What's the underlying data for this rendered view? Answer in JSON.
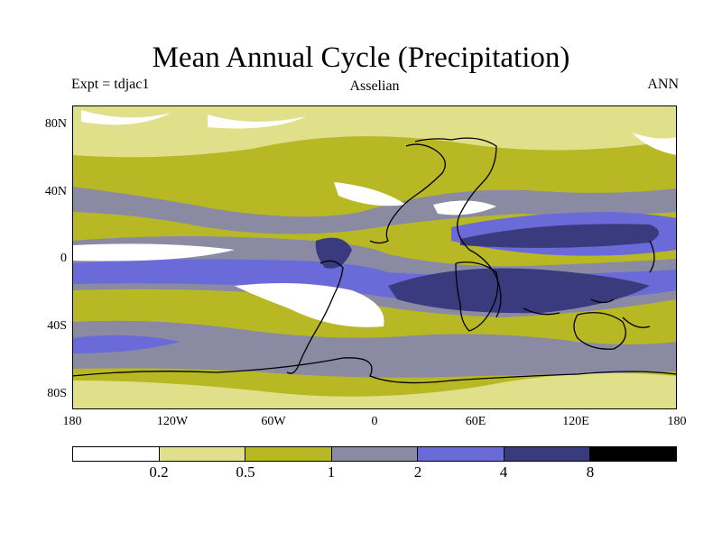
{
  "title": "Mean Annual Cycle (Precipitation)",
  "experiment": "Expt = tdjac1",
  "scheme": "Asselian",
  "period": "ANN",
  "lat_labels": [
    "80N",
    "40N",
    "0",
    "40S",
    "80S"
  ],
  "lon_labels": [
    "180",
    "120W",
    "60W",
    "0",
    "60E",
    "120E",
    "180"
  ],
  "colorbar": {
    "labels": [
      "0.2",
      "0.5",
      "1",
      "2",
      "4",
      "8"
    ],
    "colors": [
      "#ffffff",
      "#e0e08a",
      "#b8b825",
      "#8a8aa3",
      "#6a6ad8",
      "#3a3a7e",
      "#000000"
    ]
  },
  "chart_data": {
    "type": "heatmap",
    "title": "Mean Annual Cycle (Precipitation)",
    "variable": "Precipitation",
    "experiment": "tdjac1",
    "scheme": "Asselian",
    "season": "ANN",
    "lat_range": [
      -90,
      90
    ],
    "lon_range": [
      -180,
      180
    ],
    "lat_ticks": [
      80,
      40,
      0,
      -40,
      -80
    ],
    "lon_ticks": [
      -180,
      -120,
      -60,
      0,
      60,
      120,
      180
    ],
    "levels": [
      0.2,
      0.5,
      1,
      2,
      4,
      8
    ]
  }
}
